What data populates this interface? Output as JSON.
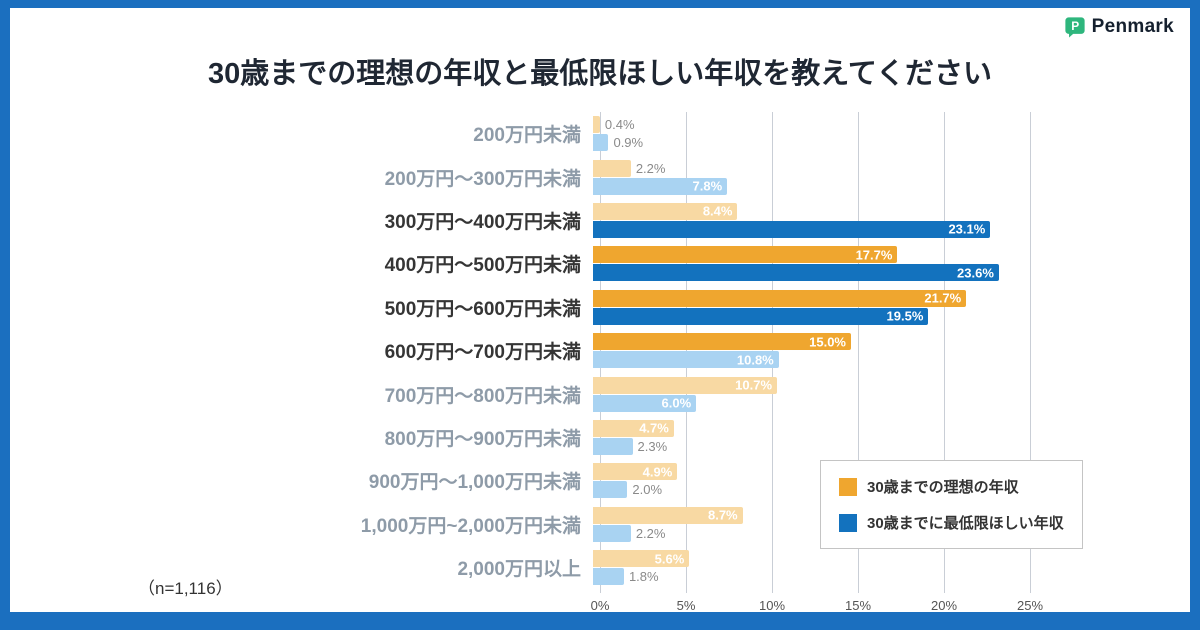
{
  "frame": {
    "border_color": "#1b6fbf"
  },
  "logo": {
    "brand": "Penmark",
    "icon_color": "#2eb67d"
  },
  "title": "30歳までの理想の年収と最低限ほしい年収を教えてください",
  "sample_size": "（n=1,116）",
  "chart_data": {
    "type": "bar",
    "orientation": "horizontal",
    "title": "30歳までの理想の年収と最低限ほしい年収を教えてください",
    "categories": [
      "200万円未満",
      "200万円〜300万円未満",
      "300万円〜400万円未満",
      "400万円〜500万円未満",
      "500万円〜600万円未満",
      "600万円〜700万円未満",
      "700万円〜800万円未満",
      "800万円〜900万円未満",
      "900万円〜1,000万円未満",
      "1,000万円~2,000万円未満",
      "2,000万円以上"
    ],
    "strong_category_indexes": [
      2,
      3,
      4,
      5
    ],
    "series": [
      {
        "name": "30歳までの理想の年収",
        "values": [
          0.4,
          2.2,
          8.4,
          17.7,
          21.7,
          15.0,
          10.7,
          4.7,
          4.9,
          8.7,
          5.6
        ],
        "color_strong": "#efa62f",
        "color_light": "#f8d9a3"
      },
      {
        "name": "30歳までに最低限ほしい年収",
        "values": [
          0.9,
          7.8,
          23.1,
          23.6,
          19.5,
          10.8,
          6.0,
          2.3,
          2.0,
          2.2,
          1.8
        ],
        "color_strong": "#1372be",
        "color_light": "#a9d3f2"
      }
    ],
    "x_ticks": [
      "0%",
      "5%",
      "10%",
      "15%",
      "20%",
      "25%"
    ],
    "xlim": [
      0,
      25
    ],
    "grid": true,
    "legend_position": "right-middle",
    "emphasis_threshold": 15,
    "inside_label_threshold": 4,
    "value_suffix": "%"
  }
}
